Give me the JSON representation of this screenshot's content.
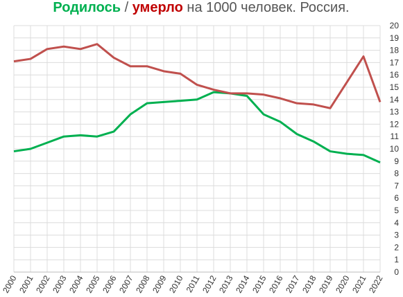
{
  "chart_data": {
    "type": "line",
    "title_separator": "/",
    "title_rest": "на 1000 человек. Россия.",
    "categories": [
      "2000",
      "2001",
      "2002",
      "2003",
      "2004",
      "2005",
      "2006",
      "2007",
      "2008",
      "2009",
      "2010",
      "2011",
      "2012",
      "2013",
      "2014",
      "2015",
      "2016",
      "2017",
      "2018",
      "2019",
      "2020",
      "2021",
      "2022"
    ],
    "series": [
      {
        "name": "Родилось",
        "color": "#00b050",
        "values": [
          9.8,
          10.0,
          10.5,
          11.0,
          11.1,
          11.0,
          11.4,
          12.8,
          13.7,
          13.8,
          13.9,
          14.0,
          14.6,
          14.5,
          14.3,
          12.8,
          12.2,
          11.2,
          10.6,
          9.8,
          9.6,
          9.5,
          8.9
        ]
      },
      {
        "name": "умерло",
        "color": "#c0504d",
        "values": [
          17.1,
          17.3,
          18.1,
          18.3,
          18.1,
          18.5,
          17.4,
          16.7,
          16.7,
          16.3,
          16.1,
          15.2,
          14.8,
          14.5,
          14.5,
          14.4,
          14.1,
          13.7,
          13.6,
          13.3,
          15.4,
          17.5,
          13.8
        ]
      }
    ],
    "ylim": [
      0,
      20
    ],
    "yticks": [
      0,
      1,
      2,
      3,
      4,
      5,
      6,
      7,
      8,
      9,
      10,
      11,
      12,
      13,
      14,
      15,
      16,
      17,
      18,
      19,
      20
    ],
    "grid": true
  }
}
